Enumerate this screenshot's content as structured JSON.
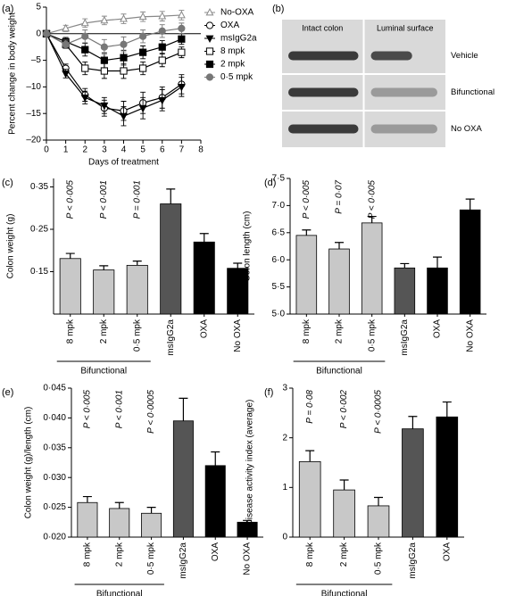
{
  "chart_data": [
    {
      "type": "line",
      "panel": "(a)",
      "ylabel": "Percent change in body weight",
      "xlabel": "Days of treatment",
      "x": [
        0,
        1,
        2,
        3,
        4,
        5,
        6,
        7
      ],
      "xlim": [
        0,
        8
      ],
      "xticks": [
        0,
        1,
        2,
        3,
        4,
        5,
        6,
        7,
        8
      ],
      "ylim": [
        -20,
        5
      ],
      "yticks": [
        {
          "value": -20,
          "label": "–20"
        },
        {
          "value": -15,
          "label": "–15"
        },
        {
          "value": -10,
          "label": "–10"
        },
        {
          "value": -5,
          "label": "–5"
        },
        0,
        5
      ],
      "legend": "right",
      "series": [
        {
          "name": "No-OXA",
          "color": "#888888",
          "marker": "open-triangle-up",
          "values": [
            0,
            1,
            2,
            2.5,
            2.8,
            3.2,
            3.3,
            3.5
          ],
          "errors": [
            0,
            0.6,
            0.8,
            0.8,
            0.9,
            0.9,
            0.9,
            0.9
          ]
        },
        {
          "name": "OXA",
          "color": "#000000",
          "marker": "open-circle",
          "values": [
            0,
            -6.5,
            -11.5,
            -14,
            -14.5,
            -13,
            -12,
            -9.5
          ],
          "errors": [
            0,
            0.8,
            1.2,
            1.5,
            1.8,
            2,
            2,
            1.8
          ]
        },
        {
          "name": "msIgG2a",
          "color": "#000000",
          "marker": "filled-triangle-down",
          "values": [
            0,
            -7.5,
            -12,
            -13.5,
            -15.5,
            -14,
            -12.5,
            -10
          ],
          "errors": [
            0,
            0.8,
            1.2,
            1.5,
            1.8,
            2,
            2,
            1.8
          ]
        },
        {
          "name": "8 mpk",
          "color": "#000000",
          "marker": "open-square",
          "values": [
            0,
            -2,
            -6.5,
            -7,
            -7,
            -6.5,
            -5,
            -3.5
          ],
          "errors": [
            0,
            0.8,
            1.2,
            1.4,
            1.4,
            1.2,
            1.2,
            1
          ]
        },
        {
          "name": "2 mpk",
          "color": "#000000",
          "marker": "filled-square",
          "values": [
            0,
            -1.5,
            -3,
            -5,
            -4.5,
            -3.5,
            -2.5,
            -1
          ],
          "errors": [
            0,
            0.8,
            1.2,
            1.4,
            1.4,
            1.2,
            1.2,
            1
          ]
        },
        {
          "name": "0·5 mpk",
          "color": "#777777",
          "marker": "filled-circle",
          "values": [
            0,
            -2,
            -0.5,
            -2.5,
            -2,
            -0.5,
            0.5,
            1
          ],
          "errors": [
            0,
            0.8,
            1.2,
            1.4,
            1.4,
            1.2,
            1.2,
            1
          ]
        }
      ]
    },
    {
      "type": "image",
      "panel": "(b)",
      "columns": [
        "Intact colon",
        "Luminal surface"
      ],
      "rows": [
        "Vehicle",
        "Bifunctional",
        "No  OXA"
      ]
    },
    {
      "type": "bar",
      "panel": "(c)",
      "ylabel": "Colon weight (g)",
      "categories": [
        "8 mpk",
        "2 mpk",
        "0·5 mpk",
        "msIgG2a",
        "OXA",
        "No OXA"
      ],
      "values": [
        0.181,
        0.154,
        0.165,
        0.31,
        0.22,
        0.158
      ],
      "errors": [
        0.012,
        0.01,
        0.01,
        0.035,
        0.02,
        0.012
      ],
      "colors": [
        "#c8c8c8",
        "#c8c8c8",
        "#c8c8c8",
        "#555555",
        "#000000",
        "#000000"
      ],
      "annotations": [
        "P < 0·005",
        "P < 0·001",
        "P = 0·001"
      ],
      "group": "Bifunctional",
      "ylim": [
        0.05,
        0.37
      ],
      "yticks": [
        {
          "value": 0.15,
          "label": "0·15"
        },
        {
          "value": 0.25,
          "label": "0·25"
        },
        {
          "value": 0.35,
          "label": "0·35"
        }
      ]
    },
    {
      "type": "bar",
      "panel": "(d)",
      "ylabel": "Colon length (cm)",
      "categories": [
        "8 mpk",
        "2 mpk",
        "0·5 mpk",
        "msIgG2a",
        "OXA",
        "No OXA"
      ],
      "values": [
        6.45,
        6.2,
        6.68,
        5.85,
        5.85,
        6.92
      ],
      "errors": [
        0.1,
        0.12,
        0.12,
        0.08,
        0.2,
        0.2
      ],
      "colors": [
        "#c8c8c8",
        "#c8c8c8",
        "#c8c8c8",
        "#555555",
        "#000000",
        "#000000"
      ],
      "annotations": [
        "P < 0·005",
        "P = 0·07",
        "P < 0·005"
      ],
      "group": "Bifunctional",
      "ylim": [
        5.0,
        7.5
      ],
      "yticks": [
        {
          "value": 5.0,
          "label": "5·0"
        },
        {
          "value": 5.5,
          "label": "5·5"
        },
        {
          "value": 6.0,
          "label": "6·0"
        },
        {
          "value": 6.5,
          "label": "6·5"
        },
        {
          "value": 7.0,
          "label": "7·0"
        },
        {
          "value": 7.5,
          "label": "7·5"
        }
      ]
    },
    {
      "type": "bar",
      "panel": "(e)",
      "ylabel": "Colon weight (g)/length (cm)",
      "categories": [
        "8 mpk",
        "2 mpk",
        "0·5 mpk",
        "msIgG2a",
        "OXA",
        "No OXA"
      ],
      "values": [
        0.0258,
        0.0248,
        0.024,
        0.0395,
        0.032,
        0.0225
      ],
      "errors": [
        0.001,
        0.001,
        0.001,
        0.0038,
        0.0023,
        0.0003
      ],
      "colors": [
        "#c8c8c8",
        "#c8c8c8",
        "#c8c8c8",
        "#555555",
        "#000000",
        "#000000"
      ],
      "annotations": [
        "P < 0·005",
        "P < 0·001",
        "P < 0·0005"
      ],
      "group": "Bifunctional",
      "ylim": [
        0.02,
        0.045
      ],
      "yticks": [
        {
          "value": 0.02,
          "label": "0·020"
        },
        {
          "value": 0.025,
          "label": "0·025"
        },
        {
          "value": 0.03,
          "label": "0·030"
        },
        {
          "value": 0.035,
          "label": "0·035"
        },
        {
          "value": 0.04,
          "label": "0·040"
        },
        {
          "value": 0.045,
          "label": "0·045"
        }
      ]
    },
    {
      "type": "bar",
      "panel": "(f)",
      "ylabel": "Disease activity index (average)",
      "categories": [
        "8 mpk",
        "2 mpk",
        "0·5 mpk",
        "msIgG2a",
        "OXA"
      ],
      "values": [
        1.52,
        0.95,
        0.63,
        2.18,
        2.42
      ],
      "errors": [
        0.22,
        0.2,
        0.17,
        0.25,
        0.3
      ],
      "colors": [
        "#c8c8c8",
        "#c8c8c8",
        "#c8c8c8",
        "#555555",
        "#000000"
      ],
      "annotations": [
        "P = 0·08",
        "P < 0·002",
        "P < 0·0005"
      ],
      "group": "Bifunctional",
      "ylim": [
        0,
        3
      ],
      "yticks": [
        0,
        1,
        2,
        3
      ]
    }
  ]
}
